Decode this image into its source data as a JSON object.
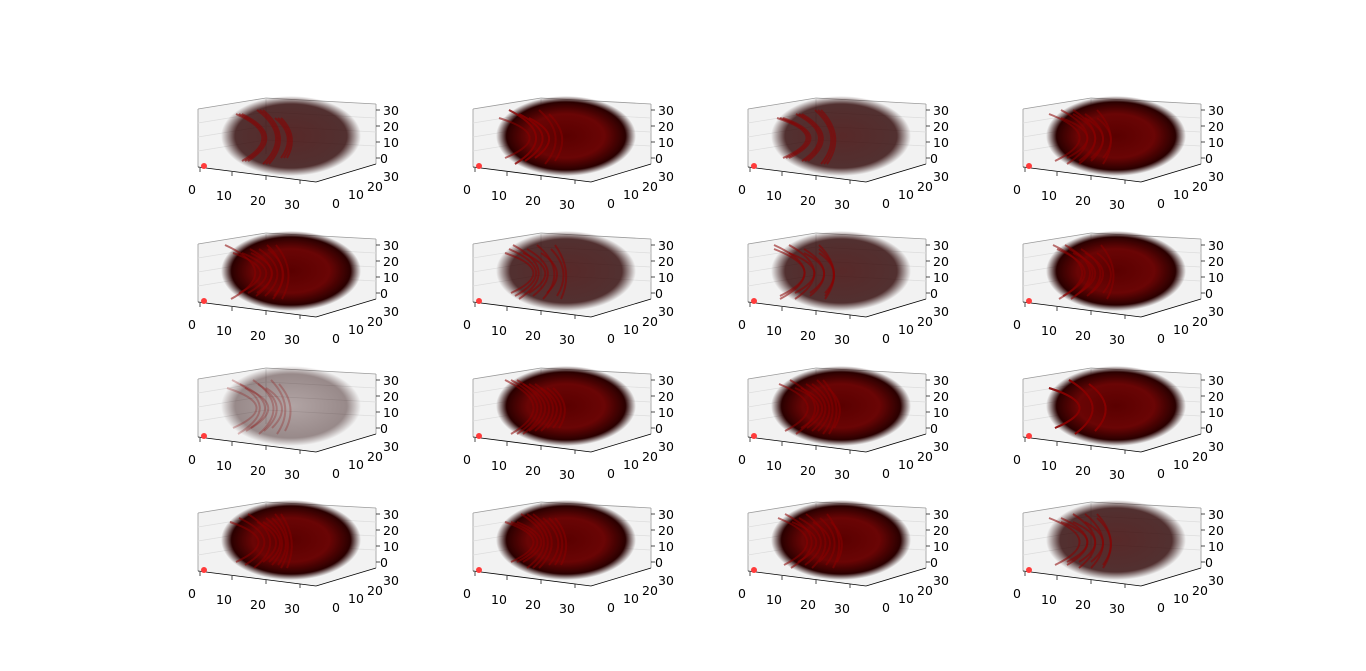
{
  "chart_data": {
    "type": "scatter",
    "projection": "3d",
    "grid": "4x4",
    "marker_color": "#8b0000",
    "origin_marker_color": "#ff3b3b",
    "axes": {
      "x": {
        "ticks": [
          "0",
          "10",
          "20",
          "30"
        ],
        "lim": [
          0,
          32
        ]
      },
      "y": {
        "ticks": [
          "0",
          "10",
          "20",
          "30"
        ],
        "lim": [
          0,
          32
        ]
      },
      "z": {
        "ticks": [
          "0",
          "10",
          "20",
          "30"
        ],
        "lim": [
          0,
          32
        ]
      }
    },
    "panels": [
      {
        "density": "sparse"
      },
      {
        "density": "dense"
      },
      {
        "density": "medium"
      },
      {
        "density": "dense"
      },
      {
        "density": "dense"
      },
      {
        "density": "medium"
      },
      {
        "density": "medium"
      },
      {
        "density": "dense"
      },
      {
        "density": "very sparse"
      },
      {
        "density": "dense"
      },
      {
        "density": "dense"
      },
      {
        "density": "dense"
      },
      {
        "density": "dense"
      },
      {
        "density": "dense"
      },
      {
        "density": "dense"
      },
      {
        "density": "medium"
      }
    ]
  }
}
